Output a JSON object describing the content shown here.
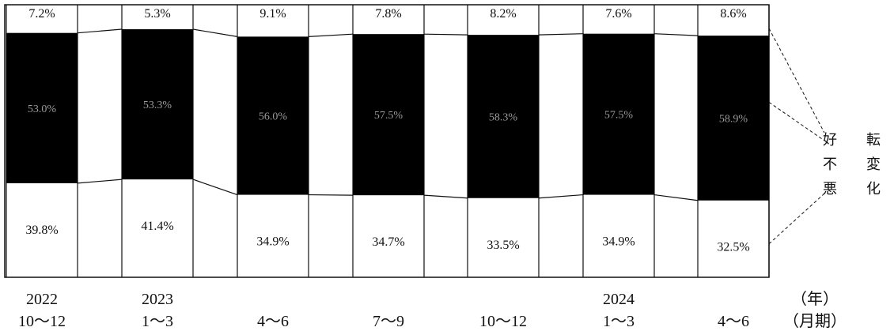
{
  "chart_data": {
    "type": "bar",
    "stacked": true,
    "percent_stacked": true,
    "categories": [
      {
        "year": "2022",
        "period": "10～12"
      },
      {
        "year": "2023",
        "period": "1～3"
      },
      {
        "year": "",
        "period": "4～6"
      },
      {
        "year": "",
        "period": "7～9"
      },
      {
        "year": "",
        "period": "10～12"
      },
      {
        "year": "2024",
        "period": "1～3"
      },
      {
        "year": "",
        "period": "4～6"
      }
    ],
    "series": [
      {
        "name": "好転",
        "values": [
          7.2,
          5.3,
          9.1,
          7.8,
          8.2,
          7.6,
          8.6
        ],
        "labels": [
          "7.2%",
          "5.3%",
          "9.1%",
          "7.8%",
          "8.2%",
          "7.6%",
          "8.6%"
        ],
        "color": "#ffffff"
      },
      {
        "name": "不変",
        "values": [
          53.0,
          53.3,
          56.0,
          57.5,
          58.3,
          57.5,
          58.9
        ],
        "labels": [
          "53.0%",
          "53.3%",
          "56.0%",
          "57.5%",
          "58.3%",
          "57.5%",
          "58.9%"
        ],
        "color": "#000000"
      },
      {
        "name": "悪化",
        "values": [
          39.8,
          41.4,
          34.9,
          34.7,
          33.5,
          34.9,
          32.5
        ],
        "labels": [
          "39.8%",
          "41.4%",
          "34.9%",
          "34.7%",
          "33.5%",
          "34.9%",
          "32.5%"
        ],
        "color": "#ffffff"
      }
    ],
    "legend": {
      "col1": [
        "好",
        "不",
        "悪"
      ],
      "col2": [
        "転",
        "変",
        "化"
      ]
    },
    "unit_labels": {
      "year": "（年）",
      "period": "（月期）"
    },
    "ylim": [
      0,
      100
    ],
    "grid": false,
    "legend_position": "right"
  }
}
